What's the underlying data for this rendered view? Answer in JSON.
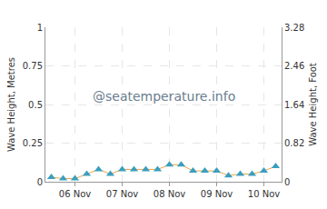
{
  "chart_data": {
    "type": "line",
    "categories": [
      null,
      null,
      "06 Nov",
      null,
      null,
      null,
      "07 Nov",
      null,
      null,
      null,
      "08 Nov",
      null,
      null,
      null,
      "09 Nov",
      null,
      null,
      null,
      "10 Nov",
      null
    ],
    "values": [
      0.03,
      0.02,
      0.02,
      0.05,
      0.08,
      0.05,
      0.08,
      0.08,
      0.08,
      0.08,
      0.11,
      0.11,
      0.07,
      0.07,
      0.07,
      0.04,
      0.05,
      0.05,
      0.07,
      0.1
    ],
    "color": "#3a9fbf",
    "marker": "triangle",
    "ylim": [
      0,
      1
    ],
    "yticks": [
      0,
      0.25,
      0.5,
      0.75,
      1
    ],
    "y2lim": [
      0,
      3.28
    ],
    "y2ticks": [
      0,
      0.82,
      1.64,
      2.46,
      3.28
    ],
    "y_label": "Wave Height, Metres",
    "y2_label": "Wave Height, Foot",
    "annotations": [
      "@seatemperature.info"
    ],
    "grid": true
  }
}
